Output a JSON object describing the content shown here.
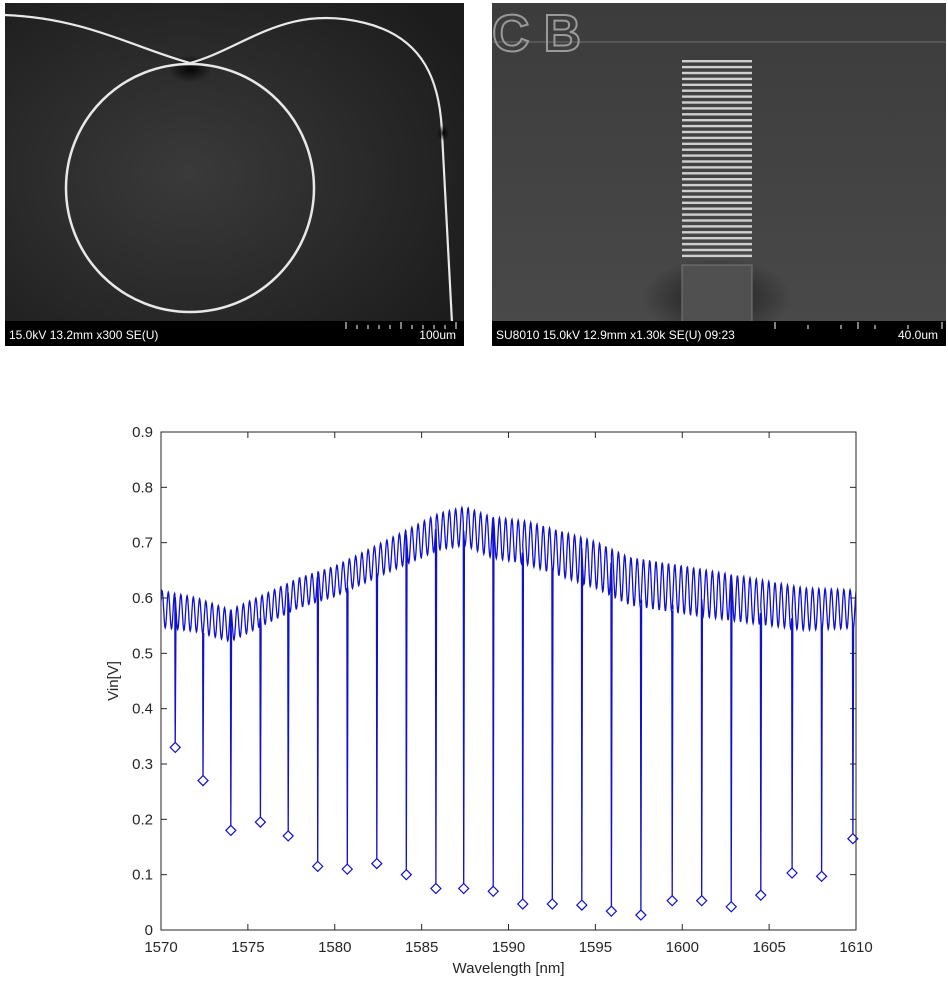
{
  "sem_images": [
    {
      "caption": "15.0kV 13.2mm x300 SE(U)",
      "scale_label": "100um"
    },
    {
      "caption": "SU8010 15.0kV 12.9mm x1.30k SE(U) 09:23",
      "scale_label": "40.0um",
      "overlay_text": "CB"
    }
  ],
  "colors": {
    "line": "#1010d0",
    "marker": "#1010d0",
    "axis": "#262626",
    "sem_background": "#2a2a2a"
  },
  "chart_data": {
    "type": "line",
    "xlabel": "Wavelength [nm]",
    "ylabel": "Vin[V]",
    "xlim": [
      1570,
      1610
    ],
    "ylim": [
      0,
      0.9
    ],
    "xticks": [
      1570,
      1575,
      1580,
      1585,
      1590,
      1595,
      1600,
      1605,
      1610
    ],
    "yticks": [
      0,
      0.1,
      0.2,
      0.3,
      0.4,
      0.5,
      0.6,
      0.7,
      0.8,
      0.9
    ],
    "grid": false,
    "baseline": {
      "x": [
        1570,
        1572,
        1574,
        1576,
        1578,
        1580,
        1582,
        1584,
        1586,
        1587.5,
        1589,
        1591,
        1593,
        1595,
        1597,
        1599,
        1601,
        1603,
        1605,
        1607,
        1610
      ],
      "y": [
        0.58,
        0.57,
        0.55,
        0.58,
        0.61,
        0.63,
        0.66,
        0.69,
        0.72,
        0.73,
        0.71,
        0.7,
        0.68,
        0.66,
        0.63,
        0.62,
        0.61,
        0.6,
        0.59,
        0.58,
        0.58
      ],
      "ripple_amplitude": 0.035
    },
    "resonance_dips": {
      "x": [
        1570.8,
        1572.4,
        1574.0,
        1575.7,
        1577.3,
        1579.0,
        1580.7,
        1582.4,
        1584.1,
        1585.8,
        1587.4,
        1589.1,
        1590.8,
        1592.5,
        1594.2,
        1595.9,
        1597.6,
        1599.4,
        1601.1,
        1602.8,
        1604.5,
        1606.3,
        1608.0,
        1609.8
      ],
      "y": [
        0.33,
        0.27,
        0.18,
        0.195,
        0.17,
        0.115,
        0.11,
        0.12,
        0.1,
        0.075,
        0.075,
        0.07,
        0.047,
        0.047,
        0.045,
        0.034,
        0.027,
        0.053,
        0.053,
        0.042,
        0.063,
        0.103,
        0.097,
        0.165
      ]
    }
  }
}
